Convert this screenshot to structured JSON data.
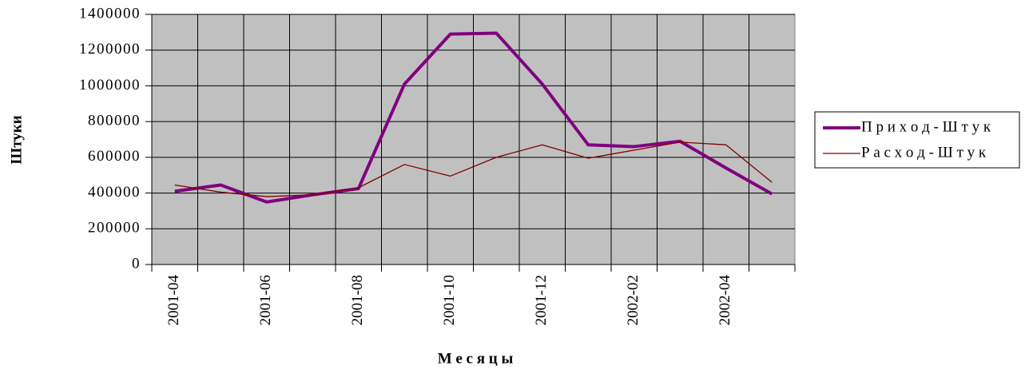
{
  "chart_data": {
    "type": "line",
    "x_label": "М е с я ц ы",
    "y_label": "Штуки",
    "categories": [
      "2001-04",
      null,
      "2001-06",
      null,
      "2001-08",
      null,
      "2001-10",
      null,
      "2001-12",
      null,
      "2002-02",
      null,
      "2002-04",
      null
    ],
    "series": [
      {
        "name": "П р и х о д - Ш т у к",
        "color": "#800080",
        "width": 4,
        "values": [
          410000,
          445000,
          350000,
          390000,
          425000,
          1010000,
          1290000,
          1295000,
          1010000,
          670000,
          660000,
          690000,
          540000,
          395000
        ]
      },
      {
        "name": "Р а с х о д - Ш т у к",
        "color": "#800000",
        "width": 1.3,
        "values": [
          445000,
          405000,
          380000,
          390000,
          430000,
          560000,
          495000,
          600000,
          670000,
          595000,
          640000,
          685000,
          670000,
          460000
        ]
      }
    ],
    "ylim": [
      0,
      1400000
    ],
    "yticks": [
      0,
      200000,
      400000,
      600000,
      800000,
      1000000,
      1200000,
      1400000
    ],
    "grid": true,
    "plot_background": "#c0c0c0",
    "legend": "right"
  }
}
